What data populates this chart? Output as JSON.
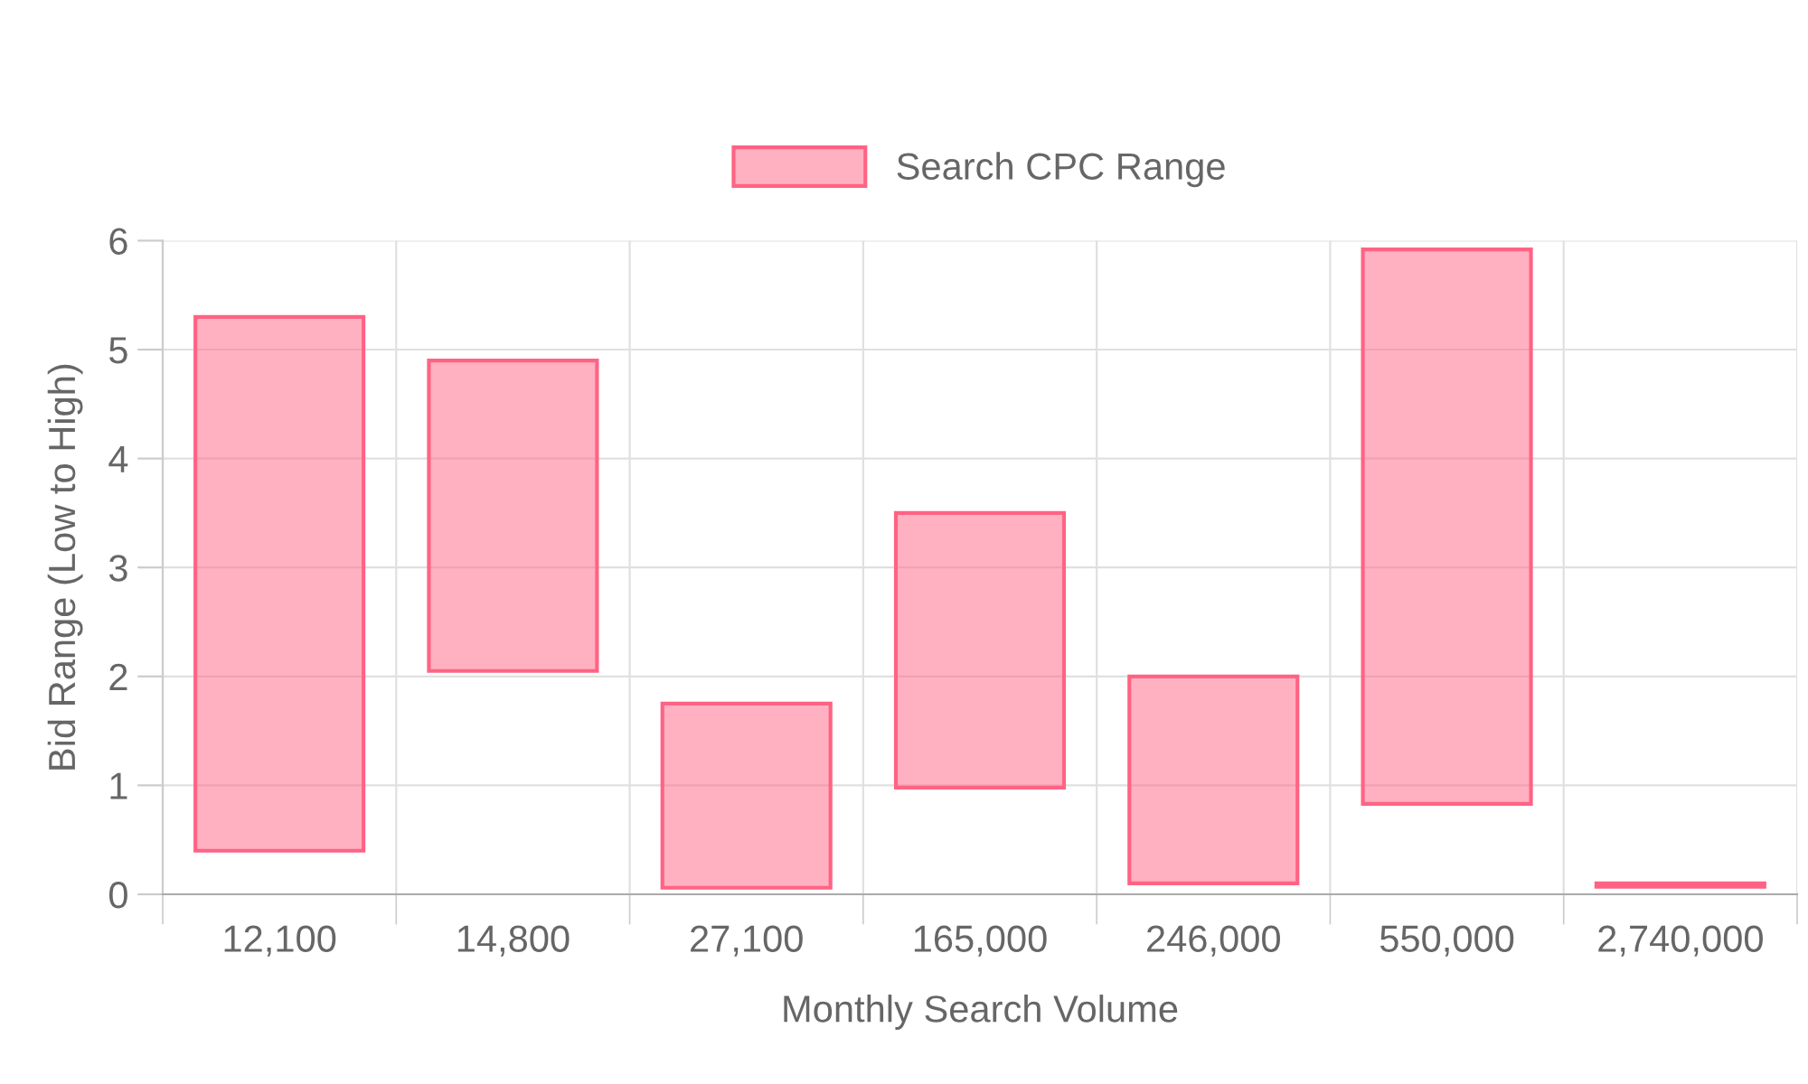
{
  "chart_data": {
    "type": "bar",
    "xlabel": "Monthly Search Volume",
    "ylabel": "Bid Range (Low to High)",
    "categories": [
      "12,100",
      "14,800",
      "27,100",
      "165,000",
      "246,000",
      "550,000",
      "2,740,000"
    ],
    "series": [
      {
        "name": "Search CPC Range",
        "color": "#ff6384",
        "values": [
          4.9,
          2.85,
          1.69,
          2.52,
          1.9,
          5.09,
          0.03
        ],
        "base": [
          0.4,
          2.05,
          0.06,
          0.98,
          0.1,
          0.83,
          0.07
        ]
      }
    ],
    "ylim": [
      0,
      6
    ],
    "yticks": [
      0,
      1,
      2,
      3,
      4,
      5,
      6
    ],
    "grid": true,
    "legend": "top"
  }
}
